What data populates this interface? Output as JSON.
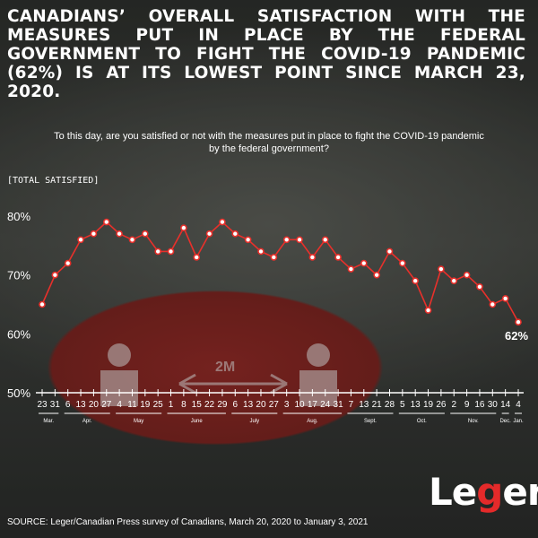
{
  "title": "Canadians’ overall satisfaction with the measures put in place by the federal government to fight the COVID-19 pandemic (62%) is at its lowest point since March 23, 2020.",
  "question": "To this day, are you satisfied or not with the measures put in place to fight the COVID-19 pandemic by the federal government?",
  "panel_label": "[TOTAL SATISFIED]",
  "floor_sign_text": "2M",
  "logo": {
    "pre": "Le",
    "accent": "g",
    "post": "er"
  },
  "source": "SOURCE: Leger/Canadian Press survey of Canadians, March 20, 2020 to January 3, 2021",
  "colors": {
    "line": "#e8302b",
    "marker_fill": "#ffffff",
    "text": "#ffffff",
    "floor_circle": "#7d2421"
  },
  "chart_data": {
    "type": "line",
    "title": "",
    "ylabel": "[TOTAL SATISFIED]",
    "ylim": [
      50,
      80
    ],
    "yticks": [
      "50%",
      "60%",
      "70%",
      "80%"
    ],
    "x": [
      "23",
      "31",
      "6",
      "13",
      "20",
      "27",
      "4",
      "11",
      "19",
      "25",
      "1",
      "8",
      "15",
      "22",
      "29",
      "6",
      "13",
      "20",
      "27",
      "3",
      "10",
      "17",
      "24",
      "31",
      "7",
      "13",
      "21",
      "28",
      "5",
      "13",
      "19",
      "26",
      "2",
      "9",
      "16",
      "30",
      "14",
      "4"
    ],
    "months": [
      {
        "label": "Mar.",
        "start": 0,
        "end": 1
      },
      {
        "label": "Apr.",
        "start": 2,
        "end": 5
      },
      {
        "label": "May",
        "start": 6,
        "end": 9
      },
      {
        "label": "June",
        "start": 10,
        "end": 14
      },
      {
        "label": "July",
        "start": 15,
        "end": 18
      },
      {
        "label": "Aug.",
        "start": 19,
        "end": 23
      },
      {
        "label": "Sept.",
        "start": 24,
        "end": 27
      },
      {
        "label": "Oct.",
        "start": 28,
        "end": 31
      },
      {
        "label": "Nov.",
        "start": 32,
        "end": 35
      },
      {
        "label": "Dec.",
        "start": 36,
        "end": 36
      },
      {
        "label": "Jan.",
        "start": 37,
        "end": 37
      }
    ],
    "series": [
      {
        "values": [
          65,
          70,
          72,
          76,
          77,
          79,
          77,
          76,
          77,
          74,
          74,
          78,
          73,
          77,
          79,
          77,
          76,
          74,
          73,
          76,
          76,
          73,
          76,
          73,
          71,
          72,
          70,
          74,
          72,
          69,
          64,
          71,
          69,
          70,
          68,
          65,
          66,
          62
        ]
      }
    ],
    "end_label": "62%",
    "grid": false
  }
}
